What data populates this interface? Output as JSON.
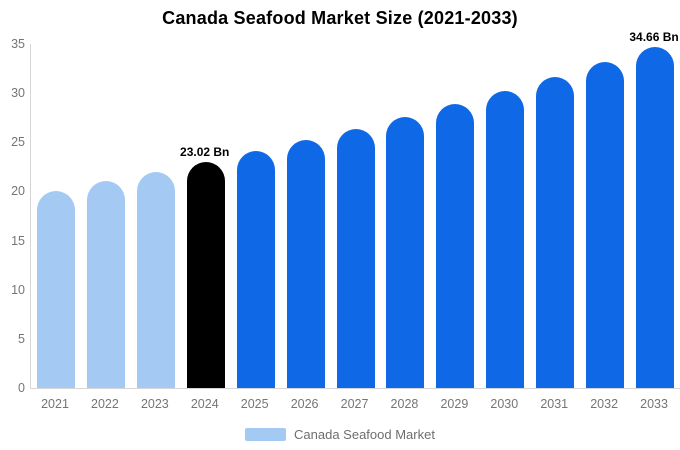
{
  "title": "Canada Seafood Market Size (2021-2033)",
  "legend": {
    "label": "Canada Seafood Market",
    "swatch_color": "#a4caf4"
  },
  "colors": {
    "historical_bar": "#a4caf4",
    "highlight_bar": "#000000",
    "forecast_bar": "#0f69e6",
    "axis_line": "#d6d6d6",
    "axis_text": "#757575",
    "data_label_text": "#000000",
    "title_text": "#000000"
  },
  "chart_data": {
    "type": "bar",
    "title": "Canada Seafood Market Size (2021-2033)",
    "categories": [
      "2021",
      "2022",
      "2023",
      "2024",
      "2025",
      "2026",
      "2027",
      "2028",
      "2029",
      "2030",
      "2031",
      "2032",
      "2033"
    ],
    "series": [
      {
        "name": "Canada Seafood Market",
        "values": [
          20.09,
          21.02,
          22.0,
          23.02,
          24.09,
          25.21,
          26.38,
          27.61,
          28.89,
          30.24,
          31.64,
          33.12,
          34.66
        ]
      }
    ],
    "bar_colors": [
      "#a4caf4",
      "#a4caf4",
      "#a4caf4",
      "#000000",
      "#0f69e6",
      "#0f69e6",
      "#0f69e6",
      "#0f69e6",
      "#0f69e6",
      "#0f69e6",
      "#0f69e6",
      "#0f69e6",
      "#0f69e6"
    ],
    "data_labels": [
      "",
      "",
      "",
      "23.02 Bn",
      "",
      "",
      "",
      "",
      "",
      "",
      "",
      "",
      "34.66 Bn"
    ],
    "xlabel": "",
    "ylabel": "",
    "ylim": [
      0,
      35
    ],
    "yticks": [
      0,
      5,
      10,
      15,
      20,
      25,
      30,
      35
    ],
    "grid": false,
    "legend_position": "bottom",
    "legend_entries": [
      "Canada Seafood Market"
    ]
  }
}
